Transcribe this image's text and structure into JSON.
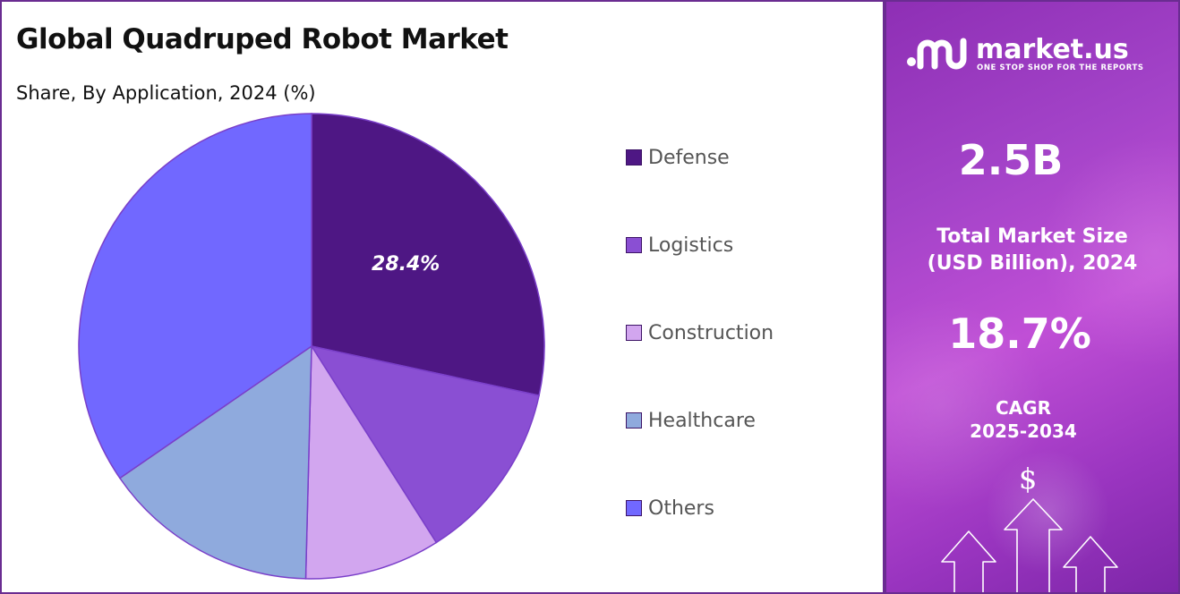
{
  "title": "Global Quadruped Robot Market",
  "subtitle": "Share, By Application, 2024 (%)",
  "chart_data": {
    "type": "pie",
    "title": "Global Quadruped Robot Market",
    "subtitle": "Share, By Application, 2024 (%)",
    "categories": [
      "Defense",
      "Logistics",
      "Construction",
      "Healthcare",
      "Others"
    ],
    "values": [
      28.4,
      12.6,
      9.4,
      15.0,
      34.6
    ],
    "colors": [
      "#4e1784",
      "#8a4fd3",
      "#d2a6ef",
      "#8faadd",
      "#7168ff"
    ],
    "data_labels": [
      "28.4%",
      "",
      "",
      "",
      ""
    ],
    "legend_position": "right"
  },
  "sidebar": {
    "logo_text": "market.us",
    "logo_tagline": "ONE STOP SHOP FOR THE REPORTS",
    "market_size_value": "2.5B",
    "market_size_label_line1": "Total Market Size",
    "market_size_label_line2": "(USD Billion), 2024",
    "cagr_value": "18.7%",
    "cagr_label_line1": "CAGR",
    "cagr_label_line2": "2025-2034",
    "dollar_icon": "dollar-sign-icon",
    "arrows_icon": "growth-arrows-icon"
  }
}
